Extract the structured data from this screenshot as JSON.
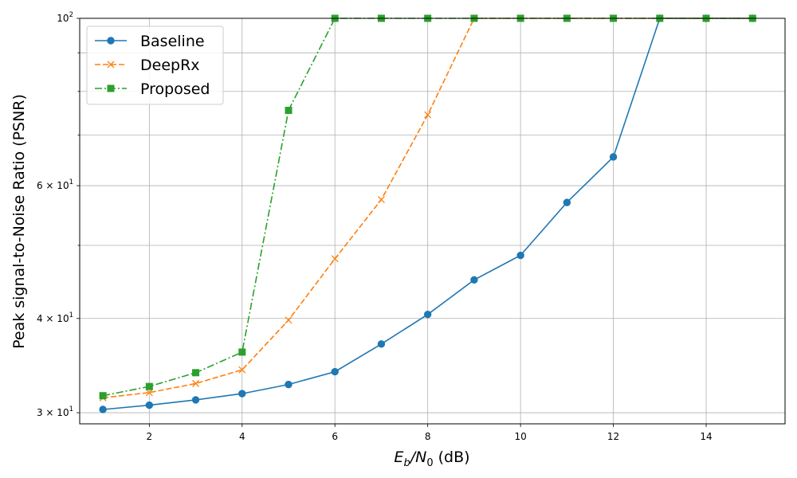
{
  "chart_data": {
    "type": "line",
    "xlabel": "E_b/N_0 (dB)",
    "xlabel_parts": {
      "main": "E",
      "sub1": "b",
      "slash": "/N",
      "sub2": "0",
      "tail": " (dB)"
    },
    "ylabel": "Peak signal-to-Noise Ratio (PSNR)",
    "yscale": "log",
    "xlim": [
      0.5,
      15.7
    ],
    "ylim": [
      29,
      100
    ],
    "grid": true,
    "legend_position": "top-left",
    "xticks": [
      2,
      4,
      6,
      8,
      10,
      12,
      14
    ],
    "xtick_labels": [
      "2",
      "4",
      "6",
      "8",
      "10",
      "12",
      "14"
    ],
    "yticks_major": [
      {
        "value": 30,
        "base": "3 × 10",
        "exp": "1"
      },
      {
        "value": 40,
        "base": "4 × 10",
        "exp": "1"
      },
      {
        "value": 60,
        "base": "6 × 10",
        "exp": "1"
      },
      {
        "value": 100,
        "base": "10",
        "exp": "2"
      }
    ],
    "ygrid_values": [
      30,
      40,
      50,
      60,
      70,
      80,
      90,
      100
    ],
    "series": [
      {
        "name": "Baseline",
        "color": "#1f77b4",
        "marker": "circle",
        "linestyle": "solid",
        "x": [
          1,
          2,
          3,
          4,
          5,
          6,
          7,
          8,
          9,
          10,
          11,
          12,
          13,
          14,
          15
        ],
        "y": [
          30.3,
          30.7,
          31.2,
          31.8,
          32.7,
          34.0,
          37.0,
          40.5,
          45.0,
          48.5,
          57.0,
          65.5,
          100,
          100,
          100
        ]
      },
      {
        "name": "DeepRx",
        "color": "#ff7f0e",
        "marker": "x",
        "linestyle": "dashed",
        "x": [
          1,
          2,
          3,
          4,
          5,
          6,
          7,
          8,
          9,
          10,
          11,
          12,
          13,
          14,
          15
        ],
        "y": [
          31.4,
          31.9,
          32.8,
          34.2,
          39.8,
          48.0,
          57.5,
          74.5,
          100,
          100,
          100,
          100,
          100,
          100,
          100
        ]
      },
      {
        "name": "Proposed",
        "color": "#2ca02c",
        "marker": "square",
        "linestyle": "dashdot",
        "x": [
          1,
          2,
          3,
          4,
          5,
          6,
          7,
          8,
          9,
          10,
          11,
          12,
          13,
          14,
          15
        ],
        "y": [
          31.6,
          32.5,
          33.9,
          36.1,
          75.5,
          100,
          100,
          100,
          100,
          100,
          100,
          100,
          100,
          100,
          100
        ]
      }
    ]
  }
}
